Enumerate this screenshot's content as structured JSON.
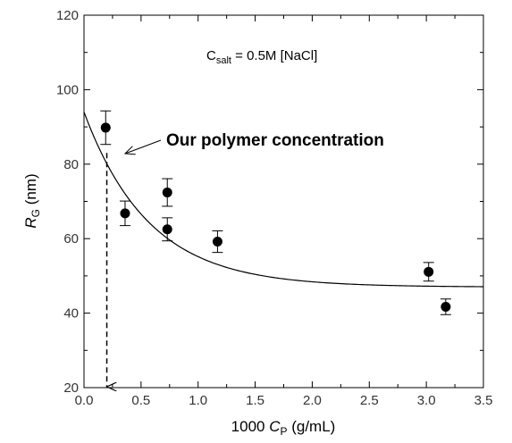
{
  "chart_data": {
    "type": "scatter",
    "xlim": [
      0.0,
      3.5
    ],
    "ylim": [
      20,
      120
    ],
    "x_ticks": [
      "0.0",
      "0.5",
      "1.0",
      "1.5",
      "2.0",
      "2.5",
      "3.0",
      "3.5"
    ],
    "y_ticks": [
      "20",
      "40",
      "60",
      "80",
      "100",
      "120"
    ],
    "xlabel": {
      "prefix": "1000 ",
      "var": "C",
      "sub": "P",
      "suffix": " (g/mL)"
    },
    "ylabel": {
      "var": "R",
      "sub": "G",
      "suffix": " (nm)"
    },
    "grid": false,
    "points": [
      {
        "x": 0.19,
        "y": 89.8,
        "err": 4.5
      },
      {
        "x": 0.36,
        "y": 66.8,
        "err": 3.3
      },
      {
        "x": 0.73,
        "y": 72.4,
        "err": 3.7
      },
      {
        "x": 0.73,
        "y": 62.5,
        "err": 3.1
      },
      {
        "x": 1.17,
        "y": 59.2,
        "err": 2.9
      },
      {
        "x": 3.02,
        "y": 51.1,
        "err": 2.5
      },
      {
        "x": 3.17,
        "y": 41.7,
        "err": 2.1
      }
    ],
    "fit_curve": {
      "model": "exponential decay",
      "y0": 47.0,
      "A": 47.0,
      "k": 1.75
    },
    "annotations": {
      "salt": {
        "prefix": "C",
        "sub": "salt",
        "suffix": " = 0.5M [NaCl]"
      },
      "marker": {
        "text": "Our polymer concentration",
        "x": 0.2
      }
    },
    "colors": {
      "marker": "#000000",
      "axis": "#000000",
      "tick_text": "#333333"
    }
  }
}
